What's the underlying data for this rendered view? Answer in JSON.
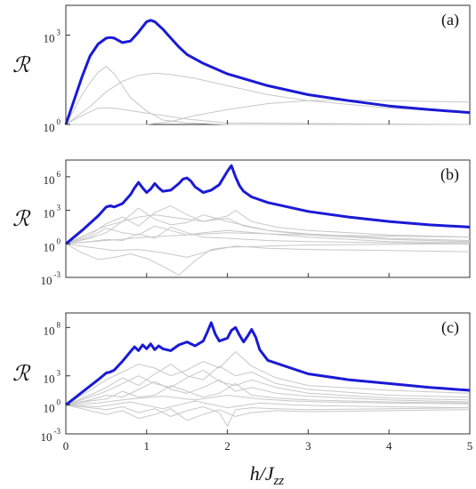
{
  "chart_data": [
    {
      "type": "line",
      "panel_label": "(a)",
      "ylabel": "\\mathcal{R}",
      "yscale": "log",
      "ylim_exp": [
        0,
        4
      ],
      "xlim": [
        0,
        5
      ],
      "y_ticks": [
        {
          "base": "10",
          "exp": "0",
          "e": 0
        },
        {
          "base": "10",
          "exp": "3",
          "e": 3
        }
      ],
      "highlight_color": "#1a1ad6",
      "background_color": "#c8c8c8",
      "highlight": {
        "name": "",
        "x": [
          0,
          0.1,
          0.2,
          0.3,
          0.4,
          0.5,
          0.55,
          0.6,
          0.7,
          0.8,
          0.9,
          1.0,
          1.05,
          1.1,
          1.2,
          1.3,
          1.4,
          1.5,
          1.7,
          2.0,
          2.5,
          3.0,
          3.5,
          4.0,
          4.5,
          5.0
        ],
        "log10y": [
          0,
          0.8,
          1.6,
          2.3,
          2.7,
          2.9,
          2.92,
          2.9,
          2.75,
          2.8,
          3.1,
          3.45,
          3.5,
          3.45,
          3.2,
          2.9,
          2.6,
          2.35,
          2.05,
          1.7,
          1.3,
          1.0,
          0.8,
          0.62,
          0.5,
          0.4
        ]
      },
      "background": [
        {
          "x": [
            0,
            0.1,
            0.2,
            0.3,
            0.4,
            0.5,
            0.6,
            0.7,
            0.8,
            1.0,
            1.2,
            1.5,
            2.0,
            5.0
          ],
          "log10y": [
            0,
            0.5,
            1.0,
            1.4,
            1.75,
            1.95,
            1.7,
            1.3,
            0.9,
            0.45,
            0.15,
            0.05,
            0,
            0
          ]
        },
        {
          "x": [
            0,
            0.3,
            0.5,
            0.7,
            0.9,
            1.1,
            1.3,
            1.6,
            2.0,
            2.5,
            3.0,
            4.0,
            5.0
          ],
          "log10y": [
            0,
            0.6,
            1.1,
            1.45,
            1.65,
            1.72,
            1.68,
            1.55,
            1.3,
            1.0,
            0.8,
            0.55,
            0.4
          ]
        },
        {
          "x": [
            0,
            0.2,
            0.4,
            0.6,
            0.9,
            1.2,
            1.5,
            2.0,
            5.0
          ],
          "log10y": [
            0,
            0.3,
            0.55,
            0.55,
            0.42,
            0.3,
            0.18,
            0.05,
            0
          ]
        },
        {
          "x": [
            0,
            1.0,
            1.3,
            1.6,
            2.0,
            2.5,
            3.0,
            3.5,
            4.0,
            5.0
          ],
          "log10y": [
            0,
            0,
            0.1,
            0.3,
            0.5,
            0.7,
            0.8,
            0.82,
            0.8,
            0.75
          ]
        }
      ]
    },
    {
      "type": "line",
      "panel_label": "(b)",
      "ylabel": "\\mathcal{R}",
      "yscale": "log",
      "ylim_exp": [
        -3,
        7.5
      ],
      "xlim": [
        0,
        5
      ],
      "y_ticks": [
        {
          "base": "10",
          "exp": "-3",
          "e": -3
        },
        {
          "base": "10",
          "exp": "0",
          "e": 0
        },
        {
          "base": "10",
          "exp": "3",
          "e": 3
        },
        {
          "base": "10",
          "exp": "6",
          "e": 6
        }
      ],
      "highlight_color": "#1a1ad6",
      "background_color": "#c8c8c8",
      "highlight": {
        "name": "",
        "x": [
          0,
          0.2,
          0.4,
          0.5,
          0.55,
          0.6,
          0.7,
          0.8,
          0.85,
          0.9,
          0.95,
          1.0,
          1.05,
          1.1,
          1.15,
          1.2,
          1.3,
          1.4,
          1.45,
          1.5,
          1.55,
          1.6,
          1.7,
          1.8,
          1.9,
          2.0,
          2.05,
          2.1,
          2.15,
          2.2,
          2.3,
          2.5,
          3.0,
          3.5,
          4.0,
          4.5,
          5.0
        ],
        "log10y": [
          0,
          1.2,
          2.5,
          3.3,
          3.4,
          3.3,
          3.6,
          4.4,
          5.0,
          5.5,
          5.0,
          4.6,
          4.9,
          5.4,
          5.0,
          4.7,
          4.8,
          5.4,
          5.8,
          5.9,
          5.6,
          5.1,
          4.6,
          4.8,
          5.3,
          6.5,
          7.0,
          6.0,
          5.2,
          4.7,
          4.2,
          3.7,
          2.9,
          2.4,
          2.0,
          1.7,
          1.5
        ]
      },
      "background": [
        {
          "x": [
            0,
            0.3,
            0.5,
            0.7,
            0.9,
            1.1,
            1.3,
            1.5,
            1.7,
            2.0,
            2.1,
            2.3,
            2.6,
            3.0,
            4.0,
            5.0
          ],
          "log10y": [
            0,
            1.0,
            1.6,
            2.0,
            2.4,
            2.6,
            2.4,
            2.2,
            2.0,
            2.5,
            3.0,
            2.0,
            1.5,
            1.2,
            0.8,
            0.6
          ]
        },
        {
          "x": [
            0,
            0.3,
            0.5,
            0.7,
            0.9,
            1.1,
            1.3,
            1.5,
            1.7,
            2.0,
            2.2,
            2.5,
            3.0,
            4.0,
            5.0
          ],
          "log10y": [
            0,
            0.8,
            1.8,
            2.4,
            1.6,
            2.8,
            3.4,
            2.6,
            2.0,
            2.3,
            1.6,
            1.2,
            0.9,
            0.5,
            0.3
          ]
        },
        {
          "x": [
            0,
            0.3,
            0.5,
            0.7,
            0.9,
            1.1,
            1.3,
            1.5,
            1.7,
            2.0,
            2.5,
            3.0,
            4.0,
            5.0
          ],
          "log10y": [
            0,
            0.5,
            1.0,
            2.0,
            3.2,
            2.2,
            1.7,
            1.9,
            2.6,
            2.0,
            1.2,
            0.8,
            0.4,
            0.2
          ]
        },
        {
          "x": [
            0,
            0.3,
            0.5,
            0.7,
            0.9,
            1.1,
            1.3,
            1.5,
            1.7,
            2.0,
            2.5,
            3.0,
            4.0,
            5.0
          ],
          "log10y": [
            0,
            0.6,
            1.4,
            1.0,
            0.8,
            1.6,
            1.2,
            0.8,
            1.0,
            1.2,
            0.9,
            0.6,
            0.2,
            0.1
          ]
        },
        {
          "x": [
            0,
            0.3,
            0.5,
            0.7,
            0.9,
            1.1,
            1.3,
            1.5,
            1.7,
            2.0,
            2.5,
            3.0,
            4.0,
            5.0
          ],
          "log10y": [
            0,
            0.2,
            0.4,
            0.3,
            0.9,
            0.5,
            1.5,
            1.0,
            0.6,
            0.5,
            0.3,
            0.2,
            0.1,
            0
          ]
        },
        {
          "x": [
            0,
            0.2,
            0.4,
            0.6,
            0.8,
            1.0,
            1.2,
            1.4,
            1.6,
            1.8,
            2.0,
            2.5,
            3.0,
            5.0
          ],
          "log10y": [
            0,
            -0.8,
            -1.4,
            -1.2,
            -0.9,
            -1.3,
            -2.0,
            -2.8,
            -1.5,
            -0.5,
            -0.3,
            -0.2,
            -0.1,
            0
          ]
        },
        {
          "x": [
            0,
            0.3,
            0.6,
            0.9,
            1.2,
            1.5,
            1.8,
            2.1,
            2.5,
            3.0,
            4.0,
            5.0
          ],
          "log10y": [
            0,
            -0.3,
            -0.6,
            -0.5,
            -0.8,
            -1.2,
            -0.6,
            -0.2,
            -0.4,
            -0.5,
            -0.6,
            -0.7
          ]
        },
        {
          "x": [
            0,
            0.5,
            1.0,
            1.5,
            2.0,
            2.5,
            3.0,
            4.0,
            5.0
          ],
          "log10y": [
            0,
            0.3,
            0.6,
            0.8,
            1.0,
            0.9,
            0.8,
            0.7,
            0.6
          ]
        }
      ]
    },
    {
      "type": "line",
      "panel_label": "(c)",
      "ylabel": "\\mathcal{R}",
      "yscale": "log",
      "ylim_exp": [
        -3,
        9.5
      ],
      "xlim": [
        0,
        5
      ],
      "xlabel": "h/J_{zz}",
      "x_ticks": [
        "0",
        "1",
        "2",
        "3",
        "4",
        "5"
      ],
      "y_ticks": [
        {
          "base": "10",
          "exp": "-3",
          "e": -3
        },
        {
          "base": "10",
          "exp": "0",
          "e": 0
        },
        {
          "base": "10",
          "exp": "3",
          "e": 3
        },
        {
          "base": "10",
          "exp": "8",
          "e": 8
        }
      ],
      "highlight_color": "#1a1ad6",
      "background_color": "#c8c8c8",
      "highlight": {
        "name": "",
        "x": [
          0,
          0.2,
          0.4,
          0.5,
          0.55,
          0.6,
          0.7,
          0.8,
          0.85,
          0.9,
          0.95,
          1.0,
          1.05,
          1.1,
          1.15,
          1.2,
          1.3,
          1.4,
          1.5,
          1.6,
          1.7,
          1.75,
          1.8,
          1.85,
          1.9,
          2.0,
          2.05,
          2.1,
          2.15,
          2.2,
          2.25,
          2.3,
          2.35,
          2.4,
          2.5,
          3.0,
          3.5,
          4.0,
          4.5,
          5.0
        ],
        "log10y": [
          0,
          1.3,
          2.6,
          3.3,
          3.4,
          3.6,
          4.5,
          5.5,
          6.0,
          5.6,
          6.2,
          5.8,
          6.3,
          5.7,
          6.1,
          5.8,
          5.6,
          6.2,
          6.5,
          6.1,
          6.6,
          7.5,
          8.5,
          7.3,
          6.6,
          6.9,
          7.7,
          8.0,
          7.2,
          6.5,
          7.1,
          7.8,
          7.0,
          5.7,
          4.6,
          3.2,
          2.6,
          2.2,
          1.8,
          1.5
        ]
      },
      "background": [
        {
          "x": [
            0,
            0.3,
            0.5,
            0.7,
            0.9,
            1.1,
            1.3,
            1.5,
            1.7,
            1.9,
            2.1,
            2.3,
            2.6,
            3.0,
            4.0,
            5.0
          ],
          "log10y": [
            0,
            1.5,
            2.6,
            3.4,
            4.2,
            3.8,
            3.0,
            3.6,
            4.5,
            3.8,
            5.5,
            4.0,
            2.8,
            2.0,
            1.5,
            1.2
          ]
        },
        {
          "x": [
            0,
            0.3,
            0.5,
            0.7,
            0.9,
            1.1,
            1.3,
            1.5,
            1.7,
            1.9,
            2.1,
            2.3,
            2.6,
            3.0,
            4.0,
            5.0
          ],
          "log10y": [
            0,
            1.0,
            1.8,
            2.8,
            2.0,
            3.2,
            4.2,
            3.0,
            2.6,
            4.0,
            3.0,
            3.4,
            2.2,
            1.6,
            1.0,
            0.8
          ]
        },
        {
          "x": [
            0,
            0.3,
            0.5,
            0.7,
            0.9,
            1.1,
            1.3,
            1.5,
            1.7,
            1.9,
            2.1,
            2.3,
            2.6,
            3.0,
            4.0,
            5.0
          ],
          "log10y": [
            0,
            0.8,
            1.4,
            2.2,
            3.0,
            2.2,
            1.8,
            2.8,
            3.6,
            2.4,
            2.0,
            2.6,
            1.8,
            1.2,
            0.7,
            0.5
          ]
        },
        {
          "x": [
            0,
            0.3,
            0.5,
            0.7,
            0.9,
            1.1,
            1.3,
            1.5,
            1.7,
            1.9,
            2.1,
            2.3,
            2.6,
            3.0,
            4.0,
            5.0
          ],
          "log10y": [
            0,
            0.5,
            1.0,
            0.8,
            1.6,
            2.4,
            1.6,
            1.2,
            1.8,
            2.6,
            1.4,
            1.8,
            1.2,
            0.9,
            0.5,
            0.3
          ]
        },
        {
          "x": [
            0,
            0.3,
            0.5,
            0.7,
            0.9,
            1.1,
            1.3,
            1.5,
            1.7,
            1.9,
            2.1,
            2.3,
            2.6,
            3.0,
            4.0,
            5.0
          ],
          "log10y": [
            0,
            0.4,
            0.6,
            1.4,
            0.8,
            1.0,
            2.0,
            1.4,
            0.8,
            1.2,
            2.2,
            1.0,
            0.7,
            0.5,
            0.3,
            0.2
          ]
        },
        {
          "x": [
            0,
            0.3,
            0.5,
            0.7,
            0.9,
            1.1,
            1.3,
            1.5,
            1.7,
            1.9,
            2.0,
            2.1,
            2.3,
            2.6,
            3.0,
            4.0,
            5.0
          ],
          "log10y": [
            0,
            -0.3,
            -0.5,
            -0.2,
            -0.8,
            -0.4,
            -1.2,
            -0.6,
            -0.2,
            -0.8,
            -2.2,
            -0.5,
            -0.3,
            -0.4,
            -0.5,
            -0.4,
            -0.3
          ]
        },
        {
          "x": [
            0,
            0.3,
            0.5,
            0.7,
            0.9,
            1.1,
            1.3,
            1.5,
            1.7,
            1.9,
            2.1,
            2.3,
            2.6,
            3.0,
            4.0,
            5.0
          ],
          "log10y": [
            0,
            -0.6,
            -1.0,
            -0.6,
            -1.4,
            -1.0,
            -0.4,
            -1.6,
            -1.0,
            -0.5,
            -1.2,
            -0.8,
            -0.6,
            -0.7,
            -0.6,
            -0.5
          ]
        },
        {
          "x": [
            0,
            0.4,
            0.8,
            1.2,
            1.6,
            2.0,
            2.4,
            2.8,
            3.2,
            4.0,
            5.0
          ],
          "log10y": [
            0,
            0.2,
            0.6,
            0.9,
            0.5,
            1.0,
            0.6,
            0.4,
            0.3,
            0.2,
            0.1
          ]
        },
        {
          "x": [
            0,
            0.4,
            0.8,
            1.2,
            1.6,
            2.0,
            2.4,
            2.8,
            3.2,
            4.0,
            5.0
          ],
          "log10y": [
            0,
            -0.2,
            0.3,
            -0.4,
            0.4,
            -0.3,
            0.2,
            0.0,
            -0.1,
            -0.2,
            -0.3
          ]
        }
      ]
    }
  ]
}
